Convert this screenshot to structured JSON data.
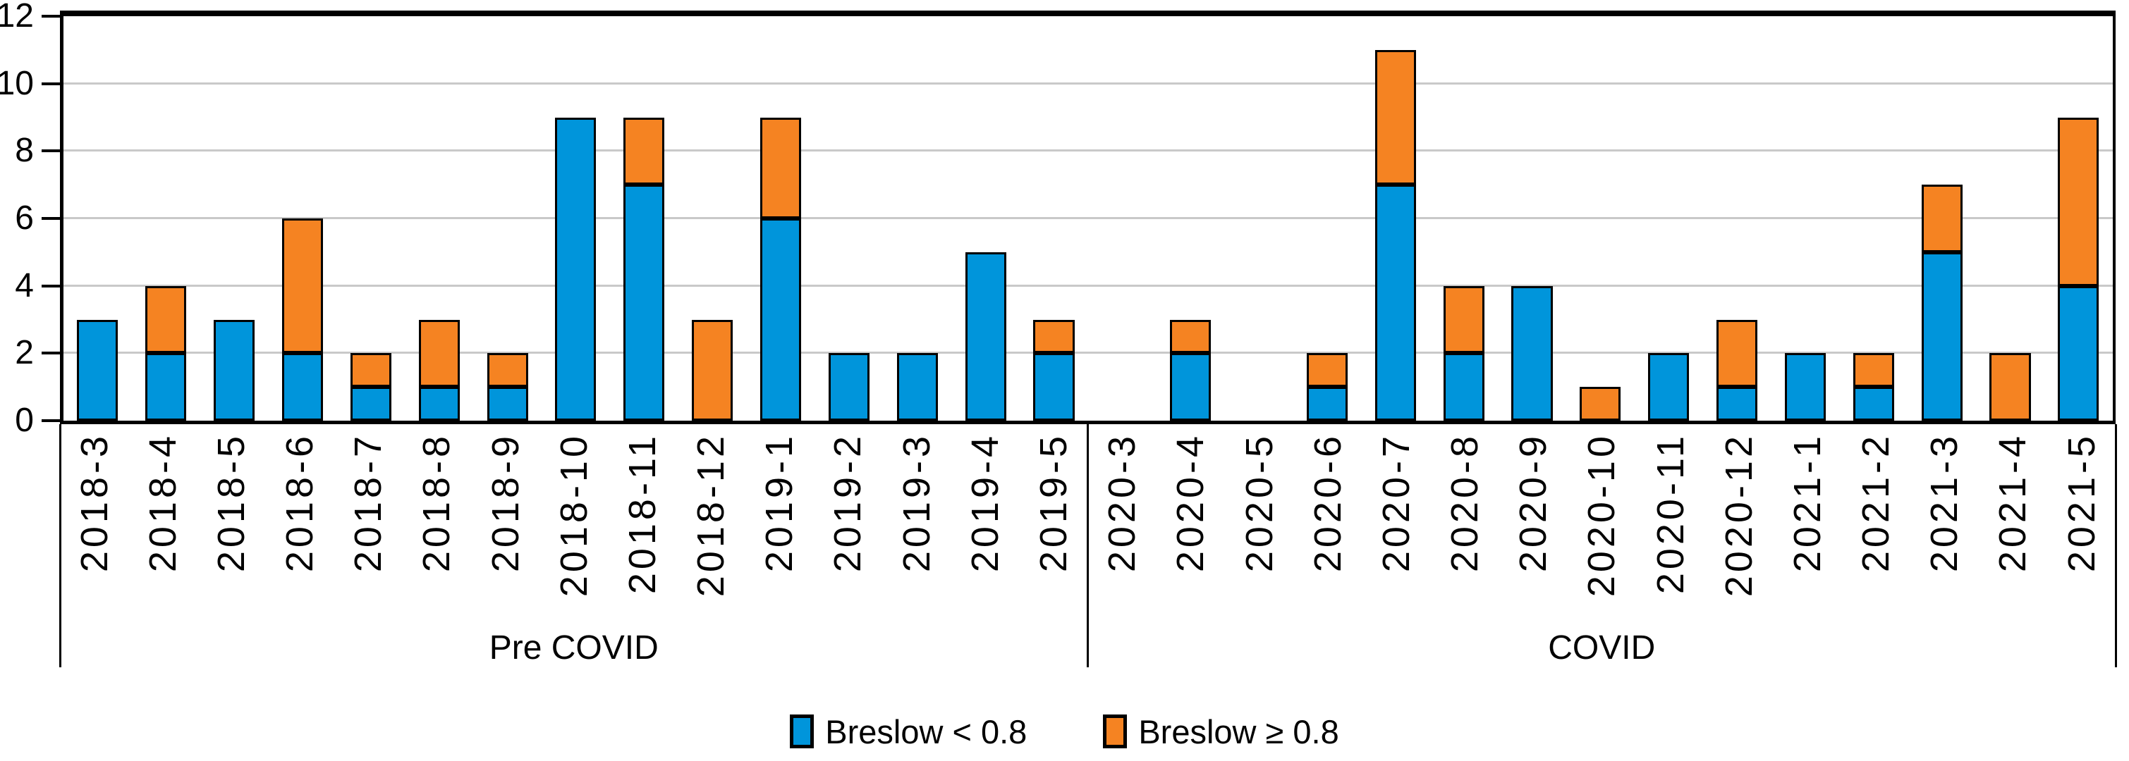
{
  "chart_data": {
    "type": "bar",
    "stacked": true,
    "title": "",
    "xlabel": "",
    "ylabel": "",
    "ylim": [
      0,
      12
    ],
    "yticks": [
      0,
      2,
      4,
      6,
      8,
      10,
      12
    ],
    "grid": true,
    "gridline_color": "#C9C9C9",
    "axis_color": "#000000",
    "bar_border_color": "#000000",
    "legend_position": "bottom",
    "categories": [
      "2018-3",
      "2018-4",
      "2018-5",
      "2018-6",
      "2018-7",
      "2018-8",
      "2018-9",
      "2018-10",
      "2018-11",
      "2018-12",
      "2019-1",
      "2019-2",
      "2019-3",
      "2019-4",
      "2019-5",
      "2020-3",
      "2020-4",
      "2020-5",
      "2020-6",
      "2020-7",
      "2020-8",
      "2020-9",
      "2020-10",
      "2020-11",
      "2020-12",
      "2021-1",
      "2021-2",
      "2021-3",
      "2021-4",
      "2021-5"
    ],
    "series": [
      {
        "name": "Breslow < 0.8",
        "color": "#0095DB",
        "values": [
          3,
          2,
          3,
          2,
          1,
          1,
          1,
          9,
          7,
          0,
          6,
          2,
          2,
          5,
          2,
          0,
          2,
          0,
          1,
          7,
          2,
          4,
          0,
          2,
          1,
          2,
          1,
          5,
          0,
          4
        ]
      },
      {
        "name": "Breslow ≥ 0.8",
        "color": "#F58322",
        "values": [
          0,
          2,
          0,
          4,
          1,
          2,
          1,
          0,
          2,
          3,
          3,
          0,
          0,
          0,
          1,
          0,
          1,
          0,
          1,
          4,
          2,
          0,
          1,
          0,
          2,
          0,
          1,
          2,
          2,
          5
        ]
      }
    ],
    "groups": [
      {
        "label": "Pre COVID",
        "span": 15
      },
      {
        "label": "COVID",
        "span": 15
      }
    ]
  }
}
